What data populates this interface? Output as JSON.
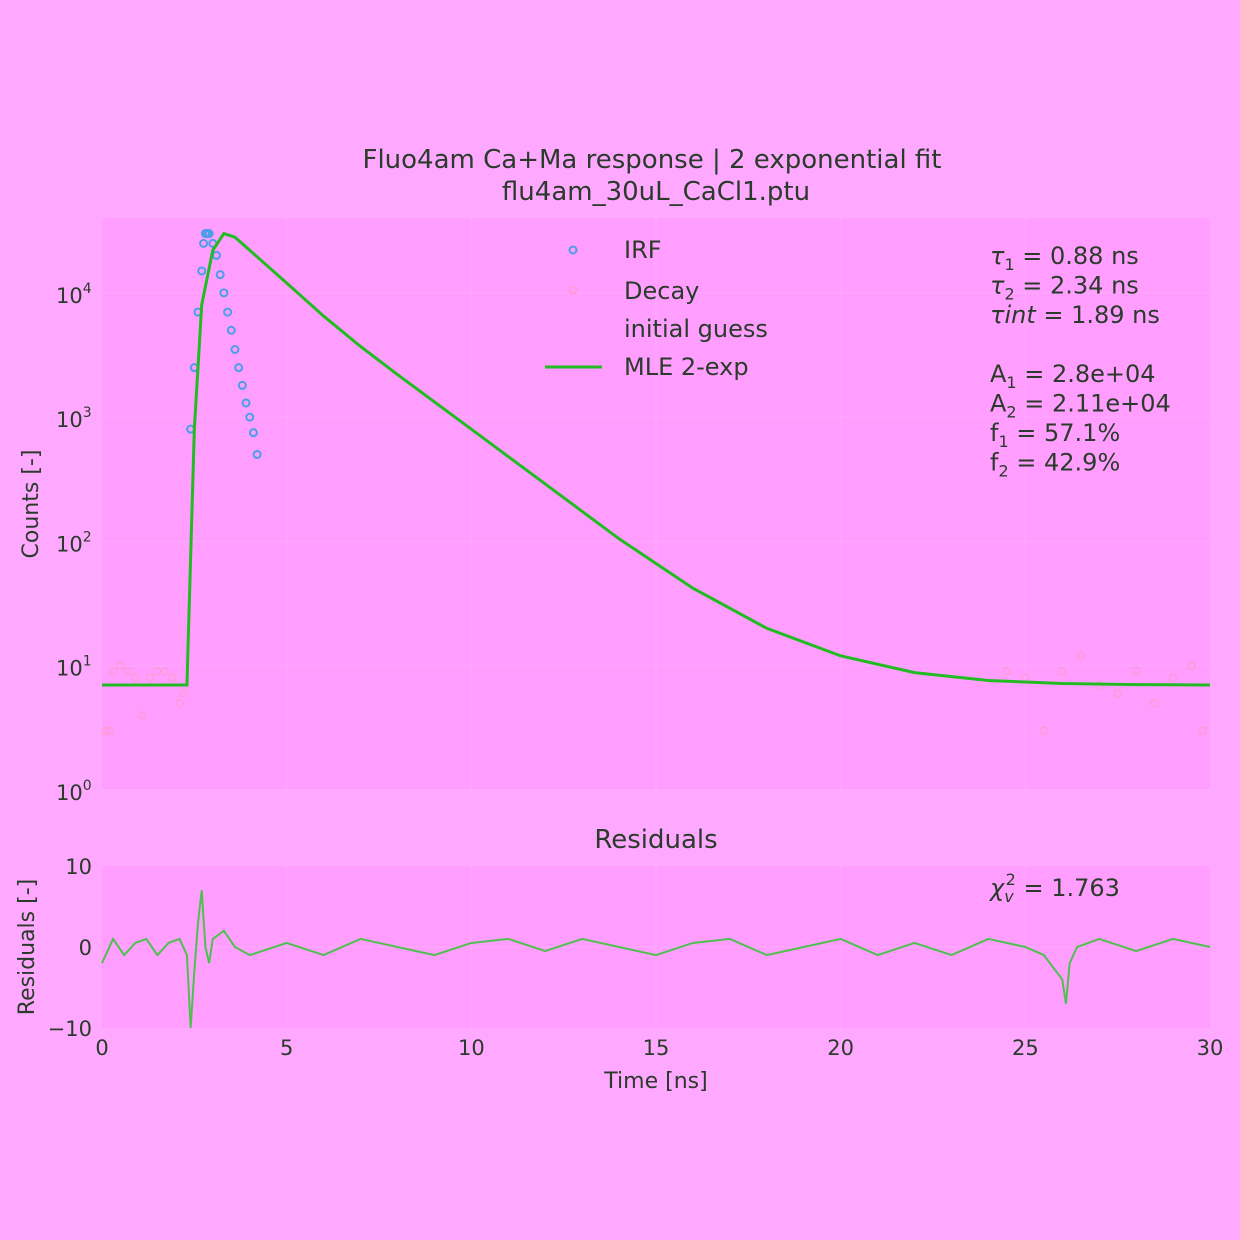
{
  "chart_data": [
    {
      "type": "scatter",
      "title": "Fluo4am Ca+Ma response  |  2 exponential fit",
      "subtitle": "flu4am_30uL_CaCl1.ptu",
      "xlabel": "",
      "ylabel": "Counts [-]",
      "xlim": [
        0,
        30
      ],
      "ylim": [
        1,
        40000
      ],
      "yscale": "log",
      "grid": true,
      "legend_position": "top-center",
      "y_ticks": [
        {
          "value": 1,
          "base": "10",
          "exp": "0"
        },
        {
          "value": 10,
          "base": "10",
          "exp": "1"
        },
        {
          "value": 100,
          "base": "10",
          "exp": "2"
        },
        {
          "value": 1000,
          "base": "10",
          "exp": "3"
        },
        {
          "value": 10000,
          "base": "10",
          "exp": "4"
        }
      ],
      "series": [
        {
          "name": "IRF",
          "kind": "scatter",
          "color": "#4a9fe8",
          "x": [
            2.4,
            2.5,
            2.6,
            2.7,
            2.75,
            2.8,
            2.85,
            2.9,
            3.0,
            3.1,
            3.2,
            3.3,
            3.4,
            3.5,
            3.6,
            3.7,
            3.8,
            3.9,
            4.0,
            4.1,
            4.2
          ],
          "y": [
            800,
            2500,
            7000,
            15000,
            25000,
            30000,
            30000,
            30000,
            25000,
            20000,
            14000,
            10000,
            7000,
            5000,
            3500,
            2500,
            1800,
            1300,
            1000,
            750,
            500
          ]
        },
        {
          "name": "Decay",
          "kind": "scatter",
          "color": "#ff9ad6",
          "x": [],
          "y": []
        },
        {
          "name": "initial guess",
          "kind": "line",
          "color": "#ffa8ff",
          "x": [],
          "y": []
        },
        {
          "name": "MLE 2-exp",
          "kind": "line",
          "color": "#22bb22",
          "x": [
            0,
            2.3,
            2.5,
            2.7,
            3.0,
            3.3,
            3.6,
            4.0,
            5.0,
            6.0,
            7.0,
            8.0,
            10.0,
            12.0,
            14.0,
            16.0,
            18.0,
            20.0,
            22.0,
            24.0,
            26.0,
            28.0,
            30.0
          ],
          "y": [
            7,
            7,
            800,
            8000,
            22000,
            30000,
            28000,
            22000,
            12000,
            6500,
            3700,
            2200,
            800,
            290,
            105,
            42,
            20,
            12,
            8.8,
            7.6,
            7.2,
            7.05,
            7.0
          ]
        }
      ],
      "decay_points": {
        "x": [
          0.1,
          0.2,
          0.3,
          0.5,
          0.7,
          0.9,
          1.1,
          1.3,
          1.5,
          1.7,
          1.9,
          2.1,
          2.2,
          24.5,
          25.0,
          25.5,
          26.0,
          26.5,
          27.0,
          27.5,
          28.0,
          28.5,
          29.0,
          29.5,
          29.8
        ],
        "y": [
          3,
          3,
          9,
          10,
          9,
          8,
          4,
          8,
          9,
          9,
          8,
          5,
          6,
          9,
          8,
          3,
          9,
          12,
          7,
          6,
          9,
          5,
          8,
          10,
          3
        ]
      },
      "annotations": [
        {
          "sym": "τ",
          "sub": "1",
          "rest": " = 0.88 ns"
        },
        {
          "sym": "τ",
          "sub": "2",
          "rest": " = 2.34 ns"
        },
        {
          "sym": "τint",
          "sub": "",
          "rest": " = 1.89 ns"
        },
        {
          "sym": "",
          "sub": "",
          "rest": ""
        },
        {
          "sym": "A",
          "sub": "1",
          "rest": " = 2.8e+04"
        },
        {
          "sym": "A",
          "sub": "2",
          "rest": " = 2.11e+04"
        },
        {
          "sym": "f",
          "sub": "1",
          "rest": " = 57.1%"
        },
        {
          "sym": "f",
          "sub": "2",
          "rest": " = 42.9%"
        }
      ]
    },
    {
      "type": "line",
      "title": "Residuals",
      "xlabel": "Time [ns]",
      "ylabel": "Residuals [-]",
      "xlim": [
        0,
        30
      ],
      "ylim": [
        -10,
        10
      ],
      "x_ticks": [
        "0",
        "5",
        "10",
        "15",
        "20",
        "25",
        "30"
      ],
      "y_ticks": [
        "10",
        "0",
        "−10"
      ],
      "chi2_label": {
        "sym": "χ",
        "sub": "v",
        "sup": "2",
        "rest": " = 1.763"
      },
      "series": [
        {
          "name": "",
          "color": "#4fc04f",
          "x": [
            0,
            0.3,
            0.6,
            0.9,
            1.2,
            1.5,
            1.8,
            2.1,
            2.3,
            2.4,
            2.5,
            2.6,
            2.7,
            2.8,
            2.9,
            3.0,
            3.3,
            3.6,
            4.0,
            5.0,
            6.0,
            7.0,
            8.0,
            9.0,
            10.0,
            11.0,
            12.0,
            13.0,
            14.0,
            15.0,
            16.0,
            17.0,
            18.0,
            19.0,
            20.0,
            21.0,
            22.0,
            23.0,
            24.0,
            25.0,
            25.5,
            26.0,
            26.1,
            26.2,
            26.4,
            27.0,
            28.0,
            29.0,
            30.0
          ],
          "y": [
            -2,
            1,
            -1,
            0.5,
            1,
            -1,
            0.5,
            1,
            -1,
            -10,
            -3,
            3,
            7,
            0,
            -2,
            1,
            2,
            0,
            -1,
            0.5,
            -1,
            1,
            0,
            -1,
            0.5,
            1,
            -0.5,
            1,
            0,
            -1,
            0.5,
            1,
            -1,
            0,
            1,
            -1,
            0.5,
            -1,
            1,
            0,
            -1,
            -4,
            -7,
            -2,
            0,
            1,
            -0.5,
            1,
            0
          ]
        }
      ]
    }
  ]
}
